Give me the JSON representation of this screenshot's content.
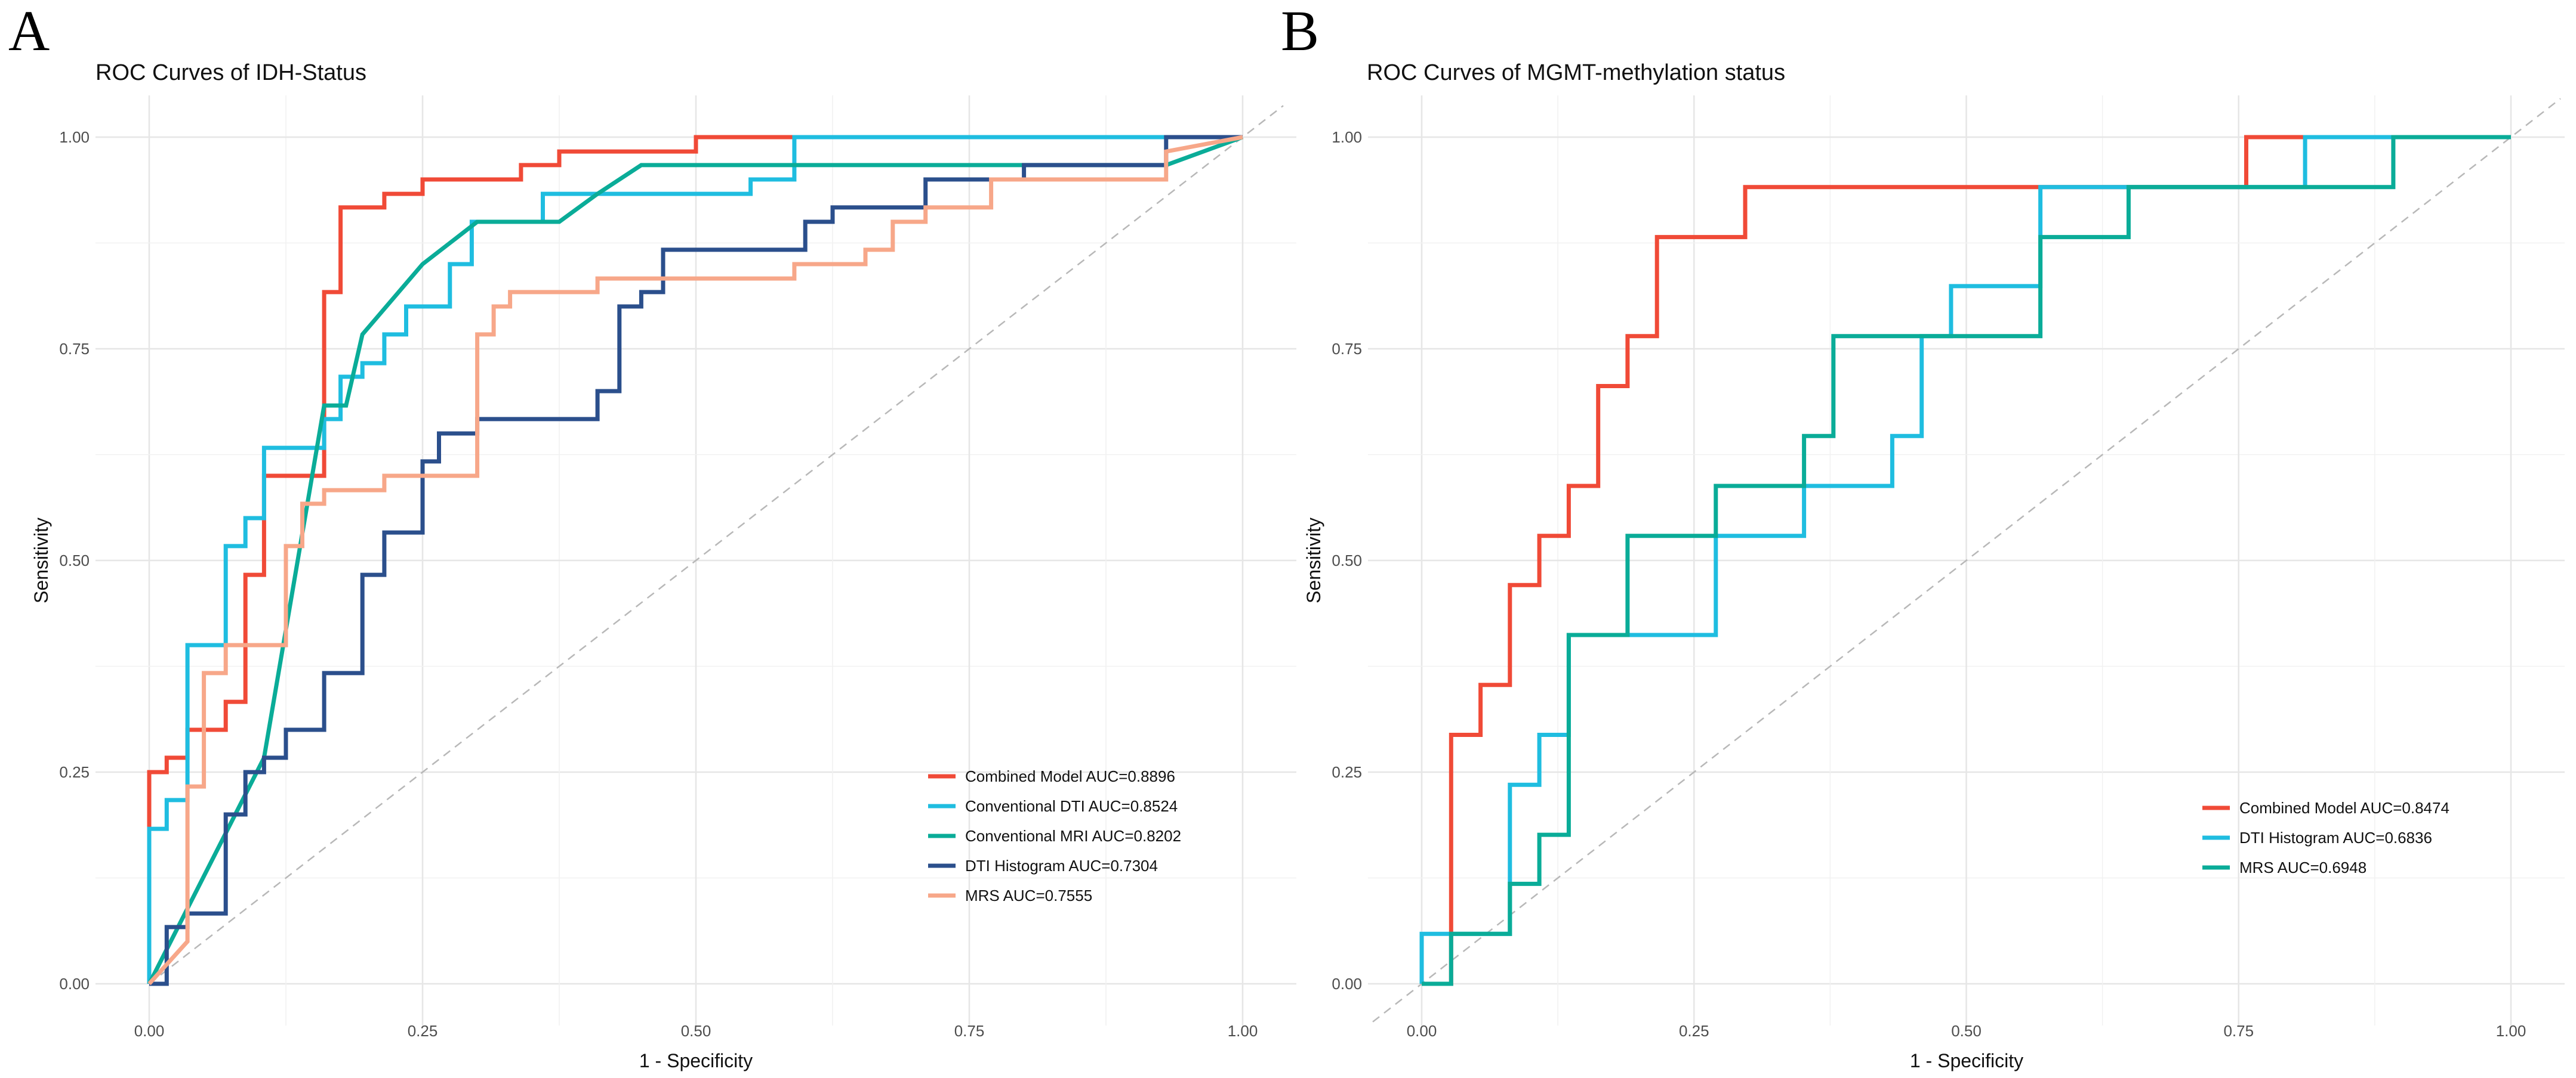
{
  "chart_data": [
    {
      "panel": "A",
      "type": "line",
      "title": "ROC Curves of IDH-Status",
      "xlabel": "1 - Specificity",
      "ylabel": "Sensitivity",
      "xlim": [
        0,
        1
      ],
      "ylim": [
        0,
        1
      ],
      "xticks": [
        "0.00",
        "0.25",
        "0.50",
        "0.75",
        "1.00"
      ],
      "yticks": [
        "0.00",
        "0.25",
        "0.50",
        "0.75",
        "1.00"
      ],
      "grid": true,
      "reference_line": "diagonal dashed",
      "legend_position": "bottom-right",
      "series": [
        {
          "name": "Combined Model",
          "label": "Combined Model AUC=0.8896",
          "auc": 0.8896,
          "color": "#f04a37",
          "x": [
            0,
            0,
            0.016,
            0.016,
            0.035,
            0.035,
            0.07,
            0.07,
            0.088,
            0.088,
            0.105,
            0.105,
            0.16,
            0.16,
            0.175,
            0.175,
            0.215,
            0.215,
            0.25,
            0.25,
            0.34,
            0.34,
            0.375,
            0.375,
            0.5,
            0.5,
            1
          ],
          "y": [
            0,
            0.25,
            0.25,
            0.267,
            0.267,
            0.3,
            0.3,
            0.333,
            0.333,
            0.483,
            0.483,
            0.6,
            0.6,
            0.817,
            0.817,
            0.917,
            0.917,
            0.933,
            0.933,
            0.95,
            0.95,
            0.967,
            0.967,
            0.983,
            0.983,
            1,
            1
          ]
        },
        {
          "name": "Conventional DTI",
          "label": "Conventional DTI AUC=0.8524",
          "auc": 0.8524,
          "color": "#1fbde0",
          "x": [
            0,
            0,
            0.016,
            0.016,
            0.035,
            0.035,
            0.07,
            0.07,
            0.088,
            0.088,
            0.105,
            0.105,
            0.16,
            0.16,
            0.175,
            0.175,
            0.195,
            0.195,
            0.215,
            0.215,
            0.235,
            0.235,
            0.275,
            0.275,
            0.295,
            0.295,
            0.36,
            0.36,
            0.55,
            0.55,
            0.59,
            0.59,
            1
          ],
          "y": [
            0,
            0.183,
            0.183,
            0.217,
            0.217,
            0.4,
            0.4,
            0.517,
            0.517,
            0.55,
            0.55,
            0.633,
            0.633,
            0.667,
            0.667,
            0.717,
            0.717,
            0.733,
            0.733,
            0.767,
            0.767,
            0.8,
            0.8,
            0.85,
            0.85,
            0.9,
            0.9,
            0.933,
            0.933,
            0.95,
            0.95,
            1,
            1
          ]
        },
        {
          "name": "Conventional MRI",
          "label": "Conventional MRI AUC=0.8202",
          "auc": 0.8202,
          "color": "#0aac98",
          "x": [
            0,
            0.105,
            0.16,
            0.18,
            0.195,
            0.25,
            0.3,
            0.375,
            0.41,
            0.45,
            0.7,
            0.93,
            1
          ],
          "y": [
            0,
            0.267,
            0.683,
            0.683,
            0.767,
            0.85,
            0.9,
            0.9,
            0.933,
            0.967,
            0.967,
            0.967,
            1
          ]
        },
        {
          "name": "DTI Histogram",
          "label": "DTI Histogram AUC=0.7304",
          "auc": 0.7304,
          "color": "#2b4f8c",
          "x": [
            0,
            0.016,
            0.016,
            0.035,
            0.035,
            0.07,
            0.07,
            0.088,
            0.088,
            0.105,
            0.105,
            0.125,
            0.125,
            0.16,
            0.16,
            0.195,
            0.195,
            0.215,
            0.215,
            0.25,
            0.25,
            0.265,
            0.265,
            0.3,
            0.3,
            0.41,
            0.41,
            0.43,
            0.43,
            0.45,
            0.45,
            0.47,
            0.47,
            0.6,
            0.6,
            0.625,
            0.625,
            0.71,
            0.71,
            0.8,
            0.8,
            0.93,
            0.93,
            1
          ],
          "y": [
            0,
            0,
            0.067,
            0.067,
            0.083,
            0.083,
            0.2,
            0.2,
            0.25,
            0.25,
            0.267,
            0.267,
            0.3,
            0.3,
            0.367,
            0.367,
            0.483,
            0.483,
            0.533,
            0.533,
            0.617,
            0.617,
            0.65,
            0.65,
            0.667,
            0.667,
            0.7,
            0.7,
            0.8,
            0.8,
            0.817,
            0.817,
            0.867,
            0.867,
            0.9,
            0.9,
            0.917,
            0.917,
            0.95,
            0.95,
            0.967,
            0.967,
            1,
            1
          ]
        },
        {
          "name": "MRS",
          "label": "MRS AUC=0.7555",
          "auc": 0.7555,
          "color": "#f7a789",
          "x": [
            0,
            0.035,
            0.035,
            0.05,
            0.05,
            0.07,
            0.07,
            0.125,
            0.125,
            0.14,
            0.14,
            0.16,
            0.16,
            0.215,
            0.215,
            0.3,
            0.3,
            0.315,
            0.315,
            0.33,
            0.33,
            0.41,
            0.41,
            0.59,
            0.59,
            0.655,
            0.655,
            0.68,
            0.68,
            0.71,
            0.71,
            0.77,
            0.77,
            0.93,
            0.93,
            1
          ],
          "y": [
            0,
            0.05,
            0.233,
            0.233,
            0.367,
            0.367,
            0.4,
            0.4,
            0.517,
            0.517,
            0.567,
            0.567,
            0.583,
            0.583,
            0.6,
            0.6,
            0.767,
            0.767,
            0.8,
            0.8,
            0.817,
            0.817,
            0.833,
            0.833,
            0.85,
            0.85,
            0.867,
            0.867,
            0.9,
            0.9,
            0.917,
            0.917,
            0.95,
            0.95,
            0.983,
            1
          ]
        }
      ]
    },
    {
      "panel": "B",
      "type": "line",
      "title": "ROC Curves of MGMT-methylation status",
      "xlabel": "1 - Specificity",
      "ylabel": "Sensitivity",
      "xlim": [
        0,
        1
      ],
      "ylim": [
        0,
        1
      ],
      "xticks": [
        "0.00",
        "0.25",
        "0.50",
        "0.75",
        "1.00"
      ],
      "yticks": [
        "0.00",
        "0.25",
        "0.50",
        "0.75",
        "1.00"
      ],
      "grid": true,
      "reference_line": "diagonal dashed",
      "legend_position": "bottom-right",
      "series": [
        {
          "name": "Combined Model",
          "label": "Combined Model AUC=0.8474",
          "auc": 0.8474,
          "color": "#f04a37",
          "x": [
            0,
            0.027,
            0.027,
            0.054,
            0.054,
            0.081,
            0.081,
            0.108,
            0.108,
            0.135,
            0.135,
            0.162,
            0.162,
            0.189,
            0.189,
            0.216,
            0.216,
            0.297,
            0.297,
            0.757,
            0.757,
            1
          ],
          "y": [
            0,
            0,
            0.294,
            0.294,
            0.353,
            0.353,
            0.471,
            0.471,
            0.529,
            0.529,
            0.588,
            0.588,
            0.706,
            0.706,
            0.765,
            0.765,
            0.882,
            0.882,
            0.941,
            0.941,
            1,
            1
          ]
        },
        {
          "name": "DTI Histogram",
          "label": "DTI Histogram AUC=0.6836",
          "auc": 0.6836,
          "color": "#1fbde0",
          "x": [
            0,
            0,
            0.081,
            0.081,
            0.108,
            0.108,
            0.135,
            0.135,
            0.27,
            0.27,
            0.351,
            0.351,
            0.432,
            0.432,
            0.459,
            0.459,
            0.486,
            0.486,
            0.568,
            0.568,
            0.811,
            0.811,
            1
          ],
          "y": [
            0,
            0.059,
            0.059,
            0.235,
            0.235,
            0.294,
            0.294,
            0.412,
            0.412,
            0.529,
            0.529,
            0.588,
            0.588,
            0.647,
            0.647,
            0.765,
            0.765,
            0.824,
            0.824,
            0.941,
            0.941,
            1,
            1
          ]
        },
        {
          "name": "MRS",
          "label": "MRS AUC=0.6948",
          "auc": 0.6948,
          "color": "#0aac98",
          "x": [
            0,
            0.027,
            0.027,
            0.081,
            0.081,
            0.108,
            0.108,
            0.135,
            0.135,
            0.189,
            0.189,
            0.27,
            0.27,
            0.351,
            0.351,
            0.378,
            0.378,
            0.568,
            0.568,
            0.649,
            0.649,
            0.892,
            0.892,
            1
          ],
          "y": [
            0,
            0,
            0.059,
            0.059,
            0.118,
            0.118,
            0.176,
            0.176,
            0.412,
            0.412,
            0.529,
            0.529,
            0.588,
            0.588,
            0.647,
            0.647,
            0.765,
            0.765,
            0.882,
            0.882,
            0.941,
            0.941,
            1,
            1
          ]
        }
      ]
    }
  ]
}
